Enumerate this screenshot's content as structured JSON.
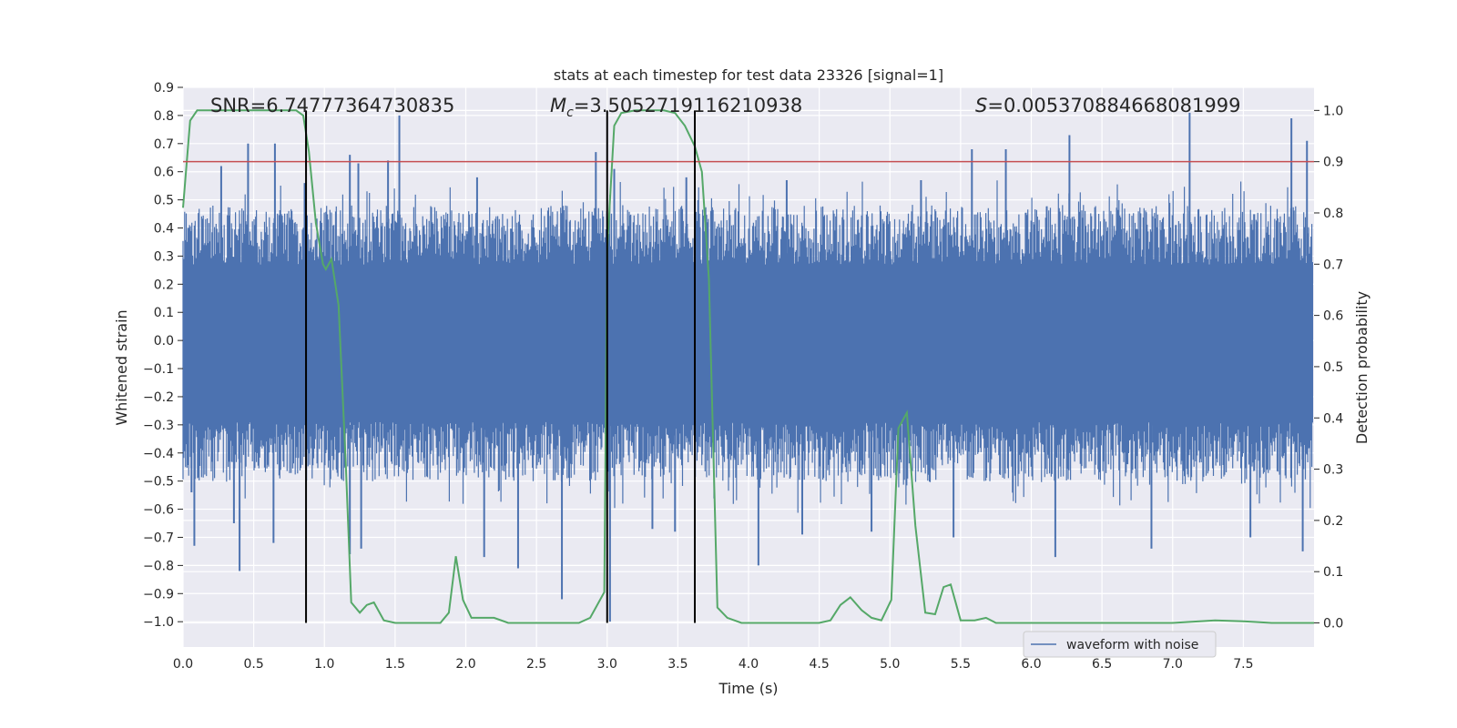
{
  "chart_data": {
    "type": "line",
    "title": "stats at each timestep for test data 23326 [signal=1]",
    "xlabel": "Time (s)",
    "ylabel": "Whitened strain",
    "y2label": "Detection probability",
    "xlim": [
      0.0,
      8.0
    ],
    "ylim": [
      -1.09,
      0.9
    ],
    "y2lim": [
      -0.047,
      1.045
    ],
    "xticks": [
      "0.0",
      "0.5",
      "1.0",
      "1.5",
      "2.0",
      "2.5",
      "3.0",
      "3.5",
      "4.0",
      "4.5",
      "5.0",
      "5.5",
      "6.0",
      "6.5",
      "7.0",
      "7.5"
    ],
    "yticks": [
      "0.9",
      "0.8",
      "0.7",
      "0.6",
      "0.5",
      "0.4",
      "0.3",
      "0.2",
      "0.1",
      "0.0",
      "−0.1",
      "−0.2",
      "−0.3",
      "−0.4",
      "−0.5",
      "−0.6",
      "−0.7",
      "−0.8",
      "−0.9",
      "−1.0"
    ],
    "y2ticks": [
      "1.0",
      "0.9",
      "0.8",
      "0.7",
      "0.6",
      "0.5",
      "0.4",
      "0.3",
      "0.2",
      "0.1",
      "0.0"
    ],
    "annotations": {
      "snr": "SNR=6.74777364730835",
      "mc_symbol": "M",
      "mc_sub": "c",
      "mc_value": "=3.5052719116210938",
      "s_symbol": "S",
      "s_value": "=0.005370884668081999"
    },
    "threshold": {
      "value": 0.9,
      "axis": "right",
      "color": "#c44e52"
    },
    "vlines": [
      0.87,
      3.0,
      3.62
    ],
    "legend": {
      "label": "waveform with noise",
      "location": "lower right"
    },
    "series": [
      {
        "name": "waveform with noise",
        "axis": "left",
        "color": "#4c72b0",
        "peaks_high": [
          [
            0.27,
            0.62
          ],
          [
            0.46,
            0.7
          ],
          [
            0.65,
            0.7
          ],
          [
            0.86,
            0.56
          ],
          [
            1.18,
            0.66
          ],
          [
            1.24,
            0.63
          ],
          [
            1.45,
            0.64
          ],
          [
            1.53,
            0.8
          ],
          [
            2.08,
            0.58
          ],
          [
            2.92,
            0.67
          ],
          [
            3.05,
            0.61
          ],
          [
            3.56,
            0.58
          ],
          [
            4.27,
            0.57
          ],
          [
            5.22,
            0.57
          ],
          [
            5.58,
            0.68
          ],
          [
            5.82,
            0.68
          ],
          [
            6.27,
            0.73
          ],
          [
            7.12,
            0.81
          ],
          [
            7.84,
            0.79
          ],
          [
            7.95,
            0.71
          ]
        ],
        "peaks_low": [
          [
            0.06,
            -0.54
          ],
          [
            0.08,
            -0.73
          ],
          [
            0.36,
            -0.65
          ],
          [
            0.4,
            -0.82
          ],
          [
            0.64,
            -0.72
          ],
          [
            1.18,
            -0.76
          ],
          [
            1.26,
            -0.74
          ],
          [
            2.13,
            -0.77
          ],
          [
            2.37,
            -0.81
          ],
          [
            2.68,
            -0.92
          ],
          [
            3.02,
            -1.0
          ],
          [
            3.32,
            -0.67
          ],
          [
            3.48,
            -0.68
          ],
          [
            4.07,
            -0.8
          ],
          [
            4.38,
            -0.69
          ],
          [
            4.87,
            -0.68
          ],
          [
            5.12,
            -0.48
          ],
          [
            5.45,
            -0.7
          ],
          [
            6.17,
            -0.77
          ],
          [
            6.85,
            -0.74
          ],
          [
            7.55,
            -0.7
          ],
          [
            7.92,
            -0.75
          ]
        ]
      },
      {
        "name": "",
        "axis": "right",
        "color": "#55a868",
        "points": [
          [
            0.0,
            0.81
          ],
          [
            0.05,
            0.98
          ],
          [
            0.1,
            1.0
          ],
          [
            0.2,
            1.0
          ],
          [
            0.4,
            1.0
          ],
          [
            0.6,
            1.0
          ],
          [
            0.8,
            1.0
          ],
          [
            0.85,
            0.99
          ],
          [
            0.89,
            0.92
          ],
          [
            0.94,
            0.78
          ],
          [
            0.99,
            0.7
          ],
          [
            1.01,
            0.69
          ],
          [
            1.05,
            0.71
          ],
          [
            1.1,
            0.62
          ],
          [
            1.15,
            0.32
          ],
          [
            1.19,
            0.04
          ],
          [
            1.25,
            0.02
          ],
          [
            1.3,
            0.035
          ],
          [
            1.35,
            0.04
          ],
          [
            1.42,
            0.005
          ],
          [
            1.5,
            0.0
          ],
          [
            1.6,
            0.0
          ],
          [
            1.7,
            0.0
          ],
          [
            1.82,
            0.0
          ],
          [
            1.88,
            0.02
          ],
          [
            1.93,
            0.13
          ],
          [
            1.98,
            0.045
          ],
          [
            2.04,
            0.01
          ],
          [
            2.15,
            0.01
          ],
          [
            2.2,
            0.01
          ],
          [
            2.3,
            0.0
          ],
          [
            2.5,
            0.0
          ],
          [
            2.8,
            0.0
          ],
          [
            2.88,
            0.01
          ],
          [
            2.94,
            0.04
          ],
          [
            2.98,
            0.06
          ],
          [
            3.0,
            0.73
          ],
          [
            3.05,
            0.97
          ],
          [
            3.1,
            0.995
          ],
          [
            3.2,
            1.0
          ],
          [
            3.4,
            1.0
          ],
          [
            3.48,
            0.995
          ],
          [
            3.55,
            0.97
          ],
          [
            3.62,
            0.93
          ],
          [
            3.67,
            0.88
          ],
          [
            3.72,
            0.67
          ],
          [
            3.78,
            0.03
          ],
          [
            3.85,
            0.01
          ],
          [
            3.95,
            0.0
          ],
          [
            4.1,
            0.0
          ],
          [
            4.3,
            0.0
          ],
          [
            4.5,
            0.0
          ],
          [
            4.58,
            0.005
          ],
          [
            4.65,
            0.035
          ],
          [
            4.72,
            0.05
          ],
          [
            4.8,
            0.025
          ],
          [
            4.87,
            0.01
          ],
          [
            4.94,
            0.005
          ],
          [
            5.01,
            0.045
          ],
          [
            5.06,
            0.38
          ],
          [
            5.12,
            0.41
          ],
          [
            5.18,
            0.19
          ],
          [
            5.25,
            0.02
          ],
          [
            5.32,
            0.017
          ],
          [
            5.38,
            0.07
          ],
          [
            5.43,
            0.075
          ],
          [
            5.5,
            0.005
          ],
          [
            5.6,
            0.005
          ],
          [
            5.68,
            0.01
          ],
          [
            5.75,
            0.0
          ],
          [
            6.0,
            0.0
          ],
          [
            6.5,
            0.0
          ],
          [
            7.0,
            0.0
          ],
          [
            7.3,
            0.005
          ],
          [
            7.5,
            0.003
          ],
          [
            7.7,
            0.0
          ],
          [
            8.0,
            0.0
          ]
        ]
      }
    ]
  }
}
